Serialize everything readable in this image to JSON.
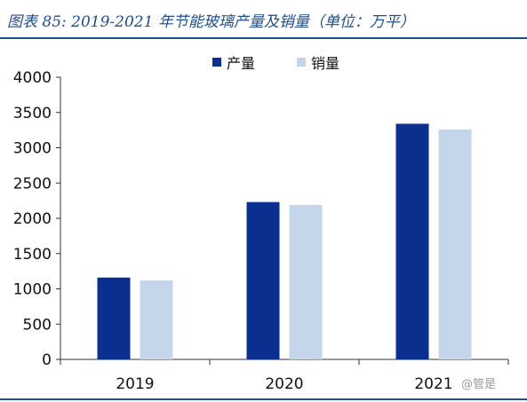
{
  "title": "图表 85:  2019-2021 年节能玻璃产量及销量（单位：万平）",
  "watermark": "@管是",
  "chart_data": {
    "type": "bar",
    "categories": [
      "2019",
      "2020",
      "2021"
    ],
    "series": [
      {
        "name": "产量",
        "color": "#0b2f8f",
        "values": [
          1160,
          2230,
          3340
        ]
      },
      {
        "name": "销量",
        "color": "#c5d5ea",
        "values": [
          1120,
          2190,
          3260
        ]
      }
    ],
    "ylim": [
      0,
      4000
    ],
    "yticks": [
      0,
      500,
      1000,
      1500,
      2000,
      2500,
      3000,
      3500,
      4000
    ],
    "legend": "top-center",
    "grid": false
  }
}
